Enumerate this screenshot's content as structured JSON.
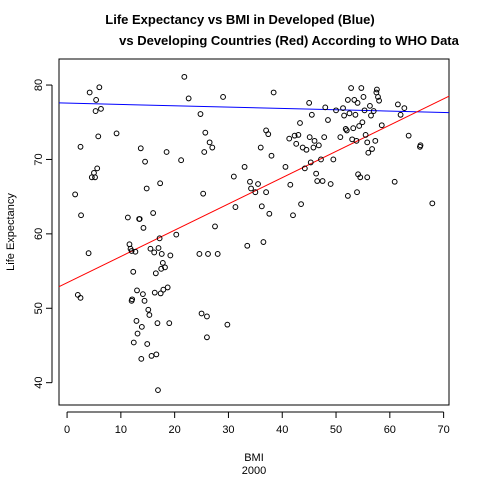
{
  "chart_data": {
    "type": "scatter",
    "title_line1": "Life Expectancy vs BMI in Developed (Blue)",
    "title_line2": "vs Developing Countries (Red) According to WHO Data",
    "xlabel": "BMI",
    "xsubtitle": "2000",
    "ylabel": "Life Expectancy",
    "xlim": [
      -1.5,
      71
    ],
    "ylim": [
      37,
      83.5
    ],
    "xticks": [
      0,
      10,
      20,
      30,
      40,
      50,
      60,
      70
    ],
    "yticks": [
      40,
      50,
      60,
      70,
      80
    ],
    "grid": false,
    "points": [
      [
        1.5,
        65.3
      ],
      [
        2.0,
        51.8
      ],
      [
        2.5,
        51.4
      ],
      [
        2.5,
        71.7
      ],
      [
        2.6,
        62.5
      ],
      [
        4.0,
        57.4
      ],
      [
        4.2,
        79.0
      ],
      [
        4.6,
        67.6
      ],
      [
        5.0,
        68.2
      ],
      [
        5.2,
        67.6
      ],
      [
        5.3,
        76.5
      ],
      [
        5.4,
        78.0
      ],
      [
        5.6,
        68.8
      ],
      [
        5.8,
        73.1
      ],
      [
        6.0,
        79.7
      ],
      [
        6.3,
        76.8
      ],
      [
        9.2,
        73.5
      ],
      [
        11.3,
        62.2
      ],
      [
        11.6,
        58.6
      ],
      [
        11.8,
        58.0
      ],
      [
        12.0,
        57.7
      ],
      [
        12.0,
        51.0
      ],
      [
        12.1,
        51.2
      ],
      [
        12.3,
        54.9
      ],
      [
        12.4,
        45.4
      ],
      [
        12.7,
        57.6
      ],
      [
        12.9,
        48.3
      ],
      [
        13.0,
        52.4
      ],
      [
        13.1,
        46.6
      ],
      [
        13.4,
        62.0
      ],
      [
        13.5,
        62.0
      ],
      [
        13.7,
        71.5
      ],
      [
        13.8,
        43.2
      ],
      [
        13.9,
        47.5
      ],
      [
        14.1,
        51.9
      ],
      [
        14.2,
        60.8
      ],
      [
        14.4,
        51.0
      ],
      [
        14.5,
        69.7
      ],
      [
        14.8,
        66.1
      ],
      [
        14.9,
        45.2
      ],
      [
        15.1,
        49.8
      ],
      [
        15.3,
        49.1
      ],
      [
        15.5,
        58.0
      ],
      [
        15.7,
        43.6
      ],
      [
        16.0,
        62.8
      ],
      [
        16.2,
        57.5
      ],
      [
        16.3,
        52.1
      ],
      [
        16.5,
        54.7
      ],
      [
        16.6,
        43.8
      ],
      [
        16.8,
        48.0
      ],
      [
        16.9,
        39.0
      ],
      [
        17.0,
        58.1
      ],
      [
        17.2,
        59.4
      ],
      [
        17.3,
        66.8
      ],
      [
        17.4,
        52.0
      ],
      [
        17.5,
        55.3
      ],
      [
        17.6,
        57.3
      ],
      [
        17.8,
        56.1
      ],
      [
        17.9,
        52.5
      ],
      [
        18.2,
        55.5
      ],
      [
        18.5,
        71.0
      ],
      [
        18.7,
        52.8
      ],
      [
        19.0,
        48.0
      ],
      [
        19.2,
        57.1
      ],
      [
        20.3,
        59.9
      ],
      [
        21.2,
        69.9
      ],
      [
        21.8,
        81.1
      ],
      [
        22.6,
        78.2
      ],
      [
        24.6,
        57.3
      ],
      [
        24.8,
        76.1
      ],
      [
        25.0,
        49.3
      ],
      [
        25.3,
        65.4
      ],
      [
        25.5,
        71.0
      ],
      [
        25.7,
        73.6
      ],
      [
        26.0,
        46.1
      ],
      [
        26.0,
        48.9
      ],
      [
        26.2,
        57.3
      ],
      [
        26.5,
        72.3
      ],
      [
        27.0,
        71.6
      ],
      [
        27.5,
        61.0
      ],
      [
        28.0,
        57.3
      ],
      [
        29.0,
        78.4
      ],
      [
        29.8,
        47.8
      ],
      [
        31.0,
        67.7
      ],
      [
        31.3,
        63.6
      ],
      [
        33.0,
        69.0
      ],
      [
        33.5,
        58.4
      ],
      [
        34.0,
        67.0
      ],
      [
        34.2,
        66.1
      ],
      [
        35.0,
        65.6
      ],
      [
        35.5,
        66.7
      ],
      [
        36.0,
        71.6
      ],
      [
        36.2,
        63.7
      ],
      [
        36.5,
        58.9
      ],
      [
        37.0,
        65.6
      ],
      [
        37.0,
        73.9
      ],
      [
        37.4,
        73.4
      ],
      [
        37.6,
        62.7
      ],
      [
        38.0,
        70.5
      ],
      [
        38.4,
        79.0
      ],
      [
        40.6,
        69.0
      ],
      [
        41.3,
        72.8
      ],
      [
        41.5,
        66.6
      ],
      [
        42.0,
        62.5
      ],
      [
        42.3,
        73.2
      ],
      [
        42.6,
        72.1
      ],
      [
        43.0,
        73.3
      ],
      [
        43.3,
        74.9
      ],
      [
        43.5,
        64.0
      ],
      [
        43.8,
        71.6
      ],
      [
        44.2,
        68.8
      ],
      [
        44.5,
        71.3
      ],
      [
        45.0,
        77.6
      ],
      [
        45.1,
        73.0
      ],
      [
        45.3,
        69.6
      ],
      [
        45.5,
        76.0
      ],
      [
        45.8,
        71.6
      ],
      [
        46.0,
        72.5
      ],
      [
        46.3,
        68.1
      ],
      [
        46.5,
        67.1
      ],
      [
        46.8,
        71.9
      ],
      [
        47.2,
        70.0
      ],
      [
        47.5,
        67.1
      ],
      [
        47.8,
        73.0
      ],
      [
        48.0,
        77.0
      ],
      [
        48.5,
        75.3
      ],
      [
        49.0,
        66.7
      ],
      [
        49.5,
        70.0
      ],
      [
        50.0,
        76.6
      ],
      [
        50.8,
        73.0
      ],
      [
        51.3,
        76.9
      ],
      [
        51.5,
        75.9
      ],
      [
        51.8,
        74.1
      ],
      [
        52.0,
        73.9
      ],
      [
        52.2,
        78.0
      ],
      [
        52.5,
        76.2
      ],
      [
        52.8,
        79.6
      ],
      [
        53.0,
        72.7
      ],
      [
        53.2,
        74.2
      ],
      [
        53.4,
        78.0
      ],
      [
        53.6,
        76.0
      ],
      [
        53.8,
        72.5
      ],
      [
        54.0,
        77.6
      ],
      [
        54.1,
        68.0
      ],
      [
        54.3,
        74.5
      ],
      [
        54.5,
        67.6
      ],
      [
        54.7,
        79.6
      ],
      [
        54.9,
        75.0
      ],
      [
        55.1,
        78.4
      ],
      [
        55.3,
        76.6
      ],
      [
        55.5,
        73.3
      ],
      [
        55.8,
        72.3
      ],
      [
        56.0,
        70.9
      ],
      [
        56.3,
        77.2
      ],
      [
        56.5,
        75.9
      ],
      [
        56.7,
        71.4
      ],
      [
        57.0,
        76.5
      ],
      [
        57.3,
        72.5
      ],
      [
        57.5,
        79.0
      ],
      [
        57.6,
        79.4
      ],
      [
        57.8,
        78.4
      ],
      [
        58.0,
        77.9
      ],
      [
        58.5,
        74.6
      ],
      [
        60.9,
        67.0
      ],
      [
        61.5,
        77.4
      ],
      [
        62.0,
        76.0
      ],
      [
        62.7,
        76.9
      ],
      [
        63.5,
        73.2
      ],
      [
        65.6,
        71.7
      ],
      [
        65.7,
        71.9
      ],
      [
        67.9,
        64.1
      ],
      [
        52.2,
        65.1
      ],
      [
        53.9,
        65.6
      ],
      [
        55.8,
        67.6
      ]
    ],
    "lines": [
      {
        "color": "#0000ff",
        "x": [
          -1.5,
          71
        ],
        "y": [
          77.6,
          76.3
        ]
      },
      {
        "color": "#ff0000",
        "x": [
          -1.5,
          71
        ],
        "y": [
          52.9,
          78.5
        ]
      }
    ]
  }
}
